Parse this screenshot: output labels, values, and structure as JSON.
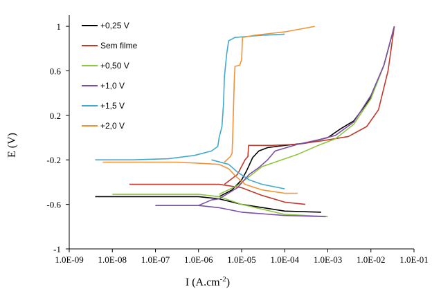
{
  "chart_data": {
    "type": "line",
    "xlabel": "I (A.cm",
    "xlabel_sup": "-2",
    "xlabel_close": ")",
    "ylabel": "E (V)",
    "x_scale": "log",
    "xlim": [
      1e-09,
      0.1
    ],
    "ylim": [
      -1,
      1.1
    ],
    "x_ticks": [
      {
        "value": 1e-09,
        "label": "1.0E-09"
      },
      {
        "value": 1e-08,
        "label": "1.0E-08"
      },
      {
        "value": 1e-07,
        "label": "1.0E-07"
      },
      {
        "value": 1e-06,
        "label": "1.0E-06"
      },
      {
        "value": 1e-05,
        "label": "1.0E-05"
      },
      {
        "value": 0.0001,
        "label": "1.0E-04"
      },
      {
        "value": 0.001,
        "label": "1.0E-03"
      },
      {
        "value": 0.01,
        "label": "1.0E-02"
      },
      {
        "value": 0.1,
        "label": "1.0E-01"
      }
    ],
    "y_ticks": [
      {
        "value": 1,
        "label": "1"
      },
      {
        "value": 0.6,
        "label": "0.6"
      },
      {
        "value": 0.2,
        "label": "0.2"
      },
      {
        "value": -0.2,
        "label": "-0.2"
      },
      {
        "value": -0.6,
        "label": "-0.6"
      },
      {
        "value": -1,
        "label": "-1"
      }
    ],
    "grid": false,
    "legend_position": "top-left",
    "series": [
      {
        "name": "+0,25 V",
        "color": "#000000",
        "cathodic": [
          [
            4e-09,
            -0.53
          ],
          [
            1e-08,
            -0.53
          ],
          [
            1e-07,
            -0.53
          ],
          [
            1e-06,
            -0.53
          ],
          [
            3e-06,
            -0.55
          ],
          [
            1e-05,
            -0.6
          ],
          [
            0.0001,
            -0.66
          ],
          [
            0.0007,
            -0.67
          ]
        ],
        "anodic": [
          [
            3e-06,
            -0.53
          ],
          [
            6e-06,
            -0.47
          ],
          [
            1e-05,
            -0.38
          ],
          [
            1.3e-05,
            -0.3
          ],
          [
            1.8e-05,
            -0.18
          ],
          [
            2.5e-05,
            -0.12
          ],
          [
            4e-05,
            -0.09
          ],
          [
            0.0001,
            -0.07
          ],
          [
            0.0003,
            -0.05
          ],
          [
            0.001,
            0.0
          ],
          [
            0.002,
            0.08
          ],
          [
            0.004,
            0.15
          ],
          [
            0.01,
            0.36
          ],
          [
            0.02,
            0.65
          ],
          [
            0.035,
            1.0
          ]
        ]
      },
      {
        "name": "Sem filme",
        "color": "#c0392b",
        "cathodic": [
          [
            2.5e-08,
            -0.42
          ],
          [
            1e-07,
            -0.42
          ],
          [
            1e-06,
            -0.42
          ],
          [
            3e-06,
            -0.42
          ],
          [
            1e-05,
            -0.45
          ],
          [
            3e-05,
            -0.52
          ],
          [
            0.0001,
            -0.58
          ],
          [
            0.0003,
            -0.6
          ]
        ],
        "anodic": [
          [
            4e-06,
            -0.42
          ],
          [
            8e-06,
            -0.33
          ],
          [
            1.2e-05,
            -0.2
          ],
          [
            1.4e-05,
            -0.17
          ],
          [
            1.45e-05,
            -0.07
          ],
          [
            2e-05,
            -0.07
          ],
          [
            5e-05,
            -0.07
          ],
          [
            0.0002,
            -0.06
          ],
          [
            0.001,
            -0.02
          ],
          [
            0.003,
            0.01
          ],
          [
            0.008,
            0.1
          ],
          [
            0.015,
            0.25
          ],
          [
            0.025,
            0.6
          ],
          [
            0.035,
            1.0
          ]
        ]
      },
      {
        "name": "+0,50 V",
        "color": "#8dc63f",
        "cathodic": [
          [
            1e-08,
            -0.51
          ],
          [
            1e-07,
            -0.51
          ],
          [
            1e-06,
            -0.51
          ],
          [
            3e-06,
            -0.53
          ],
          [
            1e-05,
            -0.6
          ],
          [
            0.0001,
            -0.69
          ],
          [
            0.001,
            -0.71
          ]
        ],
        "anodic": [
          [
            3e-06,
            -0.51
          ],
          [
            8e-06,
            -0.43
          ],
          [
            1.5e-05,
            -0.35
          ],
          [
            3e-05,
            -0.26
          ],
          [
            6e-05,
            -0.22
          ],
          [
            0.0002,
            -0.15
          ],
          [
            0.0006,
            -0.07
          ],
          [
            0.0015,
            -0.01
          ],
          [
            0.004,
            0.12
          ],
          [
            0.01,
            0.35
          ],
          [
            0.02,
            0.65
          ],
          [
            0.035,
            1.0
          ]
        ]
      },
      {
        "name": "+1,0 V",
        "color": "#7b4fa6",
        "cathodic": [
          [
            1e-07,
            -0.61
          ],
          [
            3e-07,
            -0.61
          ],
          [
            1e-06,
            -0.61
          ],
          [
            3e-06,
            -0.63
          ],
          [
            1e-05,
            -0.67
          ],
          [
            0.0001,
            -0.7
          ],
          [
            0.0009,
            -0.71
          ]
        ],
        "anodic": [
          [
            1e-06,
            -0.61
          ],
          [
            2e-06,
            -0.56
          ],
          [
            3e-06,
            -0.55
          ],
          [
            8e-06,
            -0.45
          ],
          [
            1.5e-05,
            -0.33
          ],
          [
            2.5e-05,
            -0.27
          ],
          [
            4e-05,
            -0.2
          ],
          [
            6e-05,
            -0.12
          ],
          [
            0.0002,
            -0.06
          ],
          [
            0.0006,
            -0.02
          ],
          [
            0.0015,
            0.02
          ],
          [
            0.004,
            0.14
          ],
          [
            0.01,
            0.38
          ],
          [
            0.02,
            0.65
          ],
          [
            0.035,
            1.0
          ]
        ]
      },
      {
        "name": "+1,5 V",
        "color": "#41a9cf",
        "cathodic": [
          [
            4e-09,
            -0.2
          ],
          [
            3e-08,
            -0.2
          ],
          [
            2e-07,
            -0.19
          ],
          [
            8e-07,
            -0.16
          ],
          [
            2e-06,
            -0.12
          ],
          [
            2.8e-06,
            -0.08
          ],
          [
            3e-06,
            0.0
          ],
          [
            3.5e-06,
            0.1
          ],
          [
            3.8e-06,
            0.3
          ],
          [
            4e-06,
            0.55
          ],
          [
            4.5e-06,
            0.75
          ],
          [
            5e-06,
            0.87
          ],
          [
            7e-06,
            0.9
          ],
          [
            3e-05,
            0.92
          ],
          [
            0.0001,
            0.93
          ]
        ],
        "anodic": [
          [
            2e-06,
            -0.2
          ],
          [
            5e-06,
            -0.24
          ],
          [
            8e-06,
            -0.31
          ],
          [
            1.5e-05,
            -0.38
          ],
          [
            3e-05,
            -0.42
          ],
          [
            0.0001,
            -0.46
          ]
        ]
      },
      {
        "name": "+2,0 V",
        "color": "#f39234",
        "cathodic": [
          [
            6e-09,
            -0.22
          ],
          [
            5e-08,
            -0.22
          ],
          [
            3e-07,
            -0.22
          ],
          [
            1e-06,
            -0.23
          ],
          [
            3e-06,
            -0.24
          ],
          [
            5e-06,
            -0.28
          ],
          [
            7e-06,
            -0.34
          ],
          [
            1.2e-05,
            -0.42
          ],
          [
            3e-05,
            -0.47
          ],
          [
            0.0001,
            -0.5
          ],
          [
            0.0002,
            -0.5
          ]
        ],
        "anodic": [
          [
            4e-06,
            -0.22
          ],
          [
            5.5e-06,
            -0.17
          ],
          [
            6e-06,
            -0.14
          ],
          [
            6.2e-06,
            0.0
          ],
          [
            6.5e-06,
            0.3
          ],
          [
            6.8e-06,
            0.55
          ],
          [
            7e-06,
            0.64
          ],
          [
            9e-06,
            0.65
          ],
          [
            1e-05,
            0.7
          ],
          [
            1.05e-05,
            0.9
          ],
          [
            2e-05,
            0.92
          ],
          [
            0.0001,
            0.95
          ],
          [
            0.0005,
            1.0
          ]
        ]
      }
    ]
  }
}
